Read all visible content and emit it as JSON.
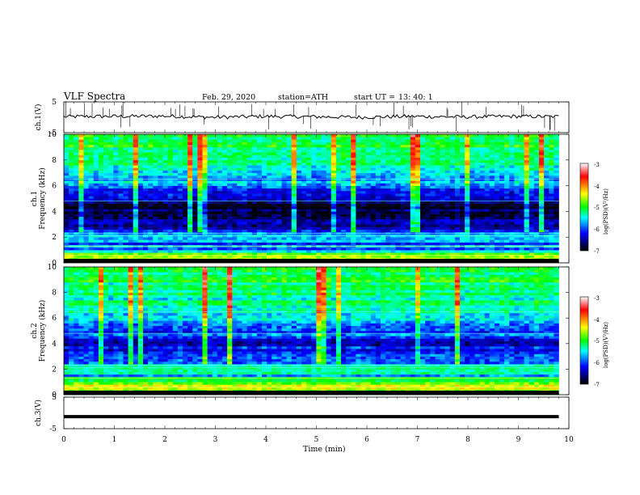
{
  "header": {
    "title": "VLF  Spectra",
    "date": "Feb. 29, 2020",
    "station": "station=ATH",
    "start_label": "start  UT  =",
    "start_time": "13: 40: 1"
  },
  "colorbar": {
    "label": "log(PSD)(V²/Hz)",
    "ticks": [
      "-3",
      "-4",
      "-5",
      "-6",
      "-7"
    ],
    "colors": [
      "#ffffff",
      "#ff0000",
      "#ffff00",
      "#00ff00",
      "#00ffff",
      "#0000ff",
      "#000000"
    ]
  },
  "chart_data": [
    {
      "type": "line",
      "panel": "ch1-timeseries",
      "ylabel": "ch.1(V)",
      "ylim": [
        -5,
        5
      ],
      "yticks": [
        "5",
        "-5"
      ],
      "x": [
        0,
        1,
        2,
        3,
        4,
        5,
        6,
        7,
        8,
        9,
        9.8
      ],
      "series": [
        {
          "values": [
            0.2,
            0.3,
            0.4,
            0.0,
            0.3,
            0.2,
            0.0,
            0.3,
            0.1,
            0.3,
            0.2
          ]
        }
      ]
    },
    {
      "type": "heatmap",
      "panel": "ch1-spectrogram",
      "ylabel": "ch.1\nFrequency (kHz)",
      "ylim": [
        0,
        10
      ],
      "yticks": [
        "10",
        "8",
        "6",
        "4",
        "2",
        "0"
      ],
      "xlim": [
        0,
        9.8
      ],
      "zlim": [
        -7,
        -3
      ],
      "freq_profile_khz": [
        [
          0.0,
          -5.2
        ],
        [
          0.5,
          -4.4
        ],
        [
          1.0,
          -5.8
        ],
        [
          1.5,
          -6.0
        ],
        [
          2.0,
          -5.6
        ],
        [
          2.5,
          -6.2
        ],
        [
          3.0,
          -6.5
        ],
        [
          3.5,
          -6.8
        ],
        [
          4.0,
          -6.9
        ],
        [
          4.5,
          -6.8
        ],
        [
          5.0,
          -6.5
        ],
        [
          5.5,
          -6.2
        ],
        [
          6.0,
          -6.0
        ],
        [
          6.5,
          -5.7
        ],
        [
          7.0,
          -5.5
        ],
        [
          8.0,
          -5.3
        ],
        [
          9.0,
          -5.1
        ],
        [
          10.0,
          -5.0
        ]
      ]
    },
    {
      "type": "heatmap",
      "panel": "ch2-spectrogram",
      "ylabel": "ch.2\nFrequency (kHz)",
      "ylim": [
        0,
        10
      ],
      "yticks": [
        "10",
        "8",
        "6",
        "4",
        "2",
        "0"
      ],
      "xlim": [
        0,
        9.8
      ],
      "zlim": [
        -7,
        -3
      ],
      "freq_profile_khz": [
        [
          0.0,
          -5.0
        ],
        [
          0.5,
          -4.3
        ],
        [
          1.0,
          -4.9
        ],
        [
          1.5,
          -5.6
        ],
        [
          2.0,
          -5.3
        ],
        [
          2.5,
          -5.9
        ],
        [
          3.0,
          -6.1
        ],
        [
          3.5,
          -6.3
        ],
        [
          4.0,
          -6.3
        ],
        [
          4.5,
          -6.2
        ],
        [
          5.0,
          -6.0
        ],
        [
          5.5,
          -6.0
        ],
        [
          6.0,
          -5.8
        ],
        [
          6.5,
          -5.6
        ],
        [
          7.0,
          -5.4
        ],
        [
          8.0,
          -5.3
        ],
        [
          9.0,
          -5.2
        ],
        [
          10.0,
          -5.1
        ]
      ]
    },
    {
      "type": "line",
      "panel": "ch3-timeseries",
      "ylabel": "ch.3(V)",
      "ylim": [
        -5,
        5
      ],
      "yticks": [
        "5",
        "-5"
      ],
      "x": [
        0,
        9.8
      ],
      "series": [
        {
          "values": [
            -1.2,
            -1.2
          ]
        }
      ]
    }
  ],
  "xaxis": {
    "label": "Time (min)",
    "ticks": [
      "0",
      "1",
      "2",
      "3",
      "4",
      "5",
      "6",
      "7",
      "8",
      "9",
      "10"
    ],
    "xlim": [
      0,
      10
    ]
  }
}
